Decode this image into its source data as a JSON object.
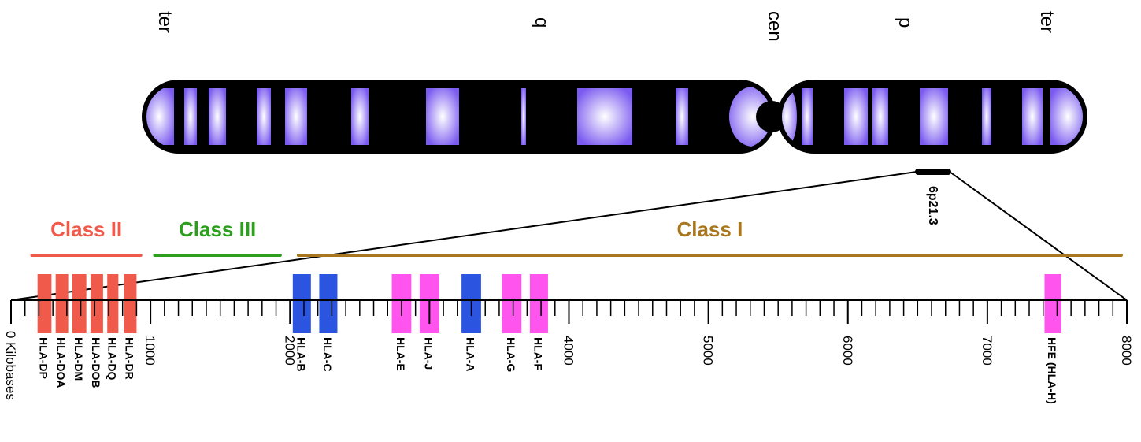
{
  "chromosome": {
    "arm_labels": [
      "ter",
      "q",
      "cen",
      "p",
      "ter"
    ],
    "band_label": "6p21.3",
    "colors": {
      "body": "#000000",
      "band_inner": "#ffffff",
      "band_outer": "#7a5af0"
    }
  },
  "scale": {
    "min_kb": 0,
    "max_kb": 8000,
    "minor_step_kb": 100,
    "origin_label": "0 Kilobases",
    "major_ticks": [
      1000,
      2000,
      3000,
      4000,
      5000,
      6000,
      7000,
      8000
    ],
    "major_labels": [
      "1000",
      "2000",
      "",
      "4000",
      "5000",
      "6000",
      "7000",
      "8000"
    ]
  },
  "classes": [
    {
      "name": "Class II",
      "start_kb": 150,
      "end_kb": 930,
      "color": "#f05a4a"
    },
    {
      "name": "Class III",
      "start_kb": 1030,
      "end_kb": 1930,
      "color": "#2e9e1f"
    },
    {
      "name": "Class I",
      "start_kb": 2060,
      "end_kb": 7960,
      "color": "#a8761c"
    }
  ],
  "genes": [
    {
      "label": "HLA-DP",
      "start_kb": 190,
      "end_kb": 290,
      "color": "#f05a4a"
    },
    {
      "label": "HLA-DOA",
      "start_kb": 320,
      "end_kb": 410,
      "color": "#f05a4a"
    },
    {
      "label": "HLA-DM",
      "start_kb": 440,
      "end_kb": 540,
      "color": "#f05a4a"
    },
    {
      "label": "HLA-DOB",
      "start_kb": 570,
      "end_kb": 660,
      "color": "#f05a4a"
    },
    {
      "label": "HLA-DQ",
      "start_kb": 690,
      "end_kb": 770,
      "color": "#f05a4a"
    },
    {
      "label": "HLA-DR",
      "start_kb": 810,
      "end_kb": 900,
      "color": "#f05a4a"
    },
    {
      "label": "HLA-B",
      "start_kb": 2020,
      "end_kb": 2150,
      "color": "#2b55e0"
    },
    {
      "label": "HLA-C",
      "start_kb": 2210,
      "end_kb": 2340,
      "color": "#2b55e0"
    },
    {
      "label": "HLA-E",
      "start_kb": 2730,
      "end_kb": 2870,
      "color": "#ff55ee"
    },
    {
      "label": "HLA-J",
      "start_kb": 2930,
      "end_kb": 3070,
      "color": "#ff55ee"
    },
    {
      "label": "HLA-A",
      "start_kb": 3230,
      "end_kb": 3370,
      "color": "#2b55e0"
    },
    {
      "label": "HLA-G",
      "start_kb": 3520,
      "end_kb": 3660,
      "color": "#ff55ee"
    },
    {
      "label": "HLA-F",
      "start_kb": 3720,
      "end_kb": 3850,
      "color": "#ff55ee"
    },
    {
      "label": "HFE (HLA-H)",
      "start_kb": 7410,
      "end_kb": 7530,
      "color": "#ff55ee"
    }
  ]
}
